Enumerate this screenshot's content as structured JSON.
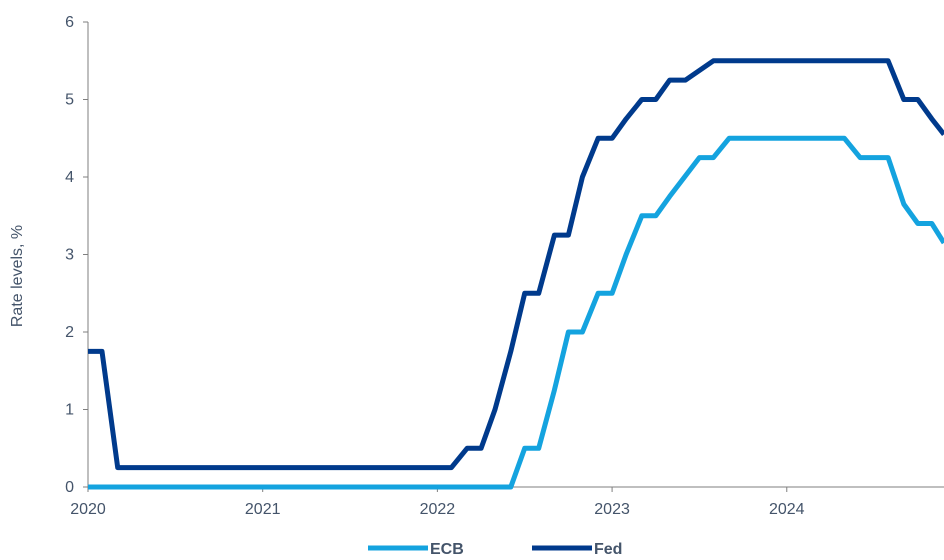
{
  "chart_data": {
    "type": "line",
    "title": "",
    "xlabel": "",
    "ylabel": "Rate levels, %",
    "xlim": [
      2020.0,
      2024.9
    ],
    "ylim": [
      0,
      6
    ],
    "x_ticks": [
      2020,
      2021,
      2022,
      2023,
      2024
    ],
    "y_ticks": [
      0,
      1,
      2,
      3,
      4,
      5,
      6
    ],
    "grid": false,
    "legend_position": "bottom",
    "series": [
      {
        "name": "ECB",
        "color": "#14a3df",
        "points": [
          [
            2020.0,
            0
          ],
          [
            2022.42,
            0
          ],
          [
            2022.5,
            0.5
          ],
          [
            2022.58,
            0.5
          ],
          [
            2022.67,
            1.25
          ],
          [
            2022.75,
            2.0
          ],
          [
            2022.83,
            2.0
          ],
          [
            2022.92,
            2.5
          ],
          [
            2023.0,
            2.5
          ],
          [
            2023.08,
            3.0
          ],
          [
            2023.17,
            3.5
          ],
          [
            2023.25,
            3.5
          ],
          [
            2023.33,
            3.75
          ],
          [
            2023.5,
            4.25
          ],
          [
            2023.58,
            4.25
          ],
          [
            2023.67,
            4.5
          ],
          [
            2024.33,
            4.5
          ],
          [
            2024.42,
            4.25
          ],
          [
            2024.58,
            4.25
          ],
          [
            2024.67,
            3.65
          ],
          [
            2024.75,
            3.4
          ],
          [
            2024.83,
            3.4
          ],
          [
            2024.9,
            3.15
          ]
        ]
      },
      {
        "name": "Fed",
        "color": "#003a8c",
        "points": [
          [
            2020.0,
            1.75
          ],
          [
            2020.08,
            1.75
          ],
          [
            2020.17,
            0.25
          ],
          [
            2022.08,
            0.25
          ],
          [
            2022.17,
            0.5
          ],
          [
            2022.25,
            0.5
          ],
          [
            2022.33,
            1.0
          ],
          [
            2022.42,
            1.75
          ],
          [
            2022.5,
            2.5
          ],
          [
            2022.58,
            2.5
          ],
          [
            2022.67,
            3.25
          ],
          [
            2022.75,
            3.25
          ],
          [
            2022.83,
            4.0
          ],
          [
            2022.92,
            4.5
          ],
          [
            2023.0,
            4.5
          ],
          [
            2023.08,
            4.75
          ],
          [
            2023.17,
            5.0
          ],
          [
            2023.25,
            5.0
          ],
          [
            2023.33,
            5.25
          ],
          [
            2023.42,
            5.25
          ],
          [
            2023.58,
            5.5
          ],
          [
            2024.58,
            5.5
          ],
          [
            2024.67,
            5.0
          ],
          [
            2024.75,
            5.0
          ],
          [
            2024.83,
            4.75
          ],
          [
            2024.9,
            4.55
          ]
        ]
      }
    ]
  }
}
